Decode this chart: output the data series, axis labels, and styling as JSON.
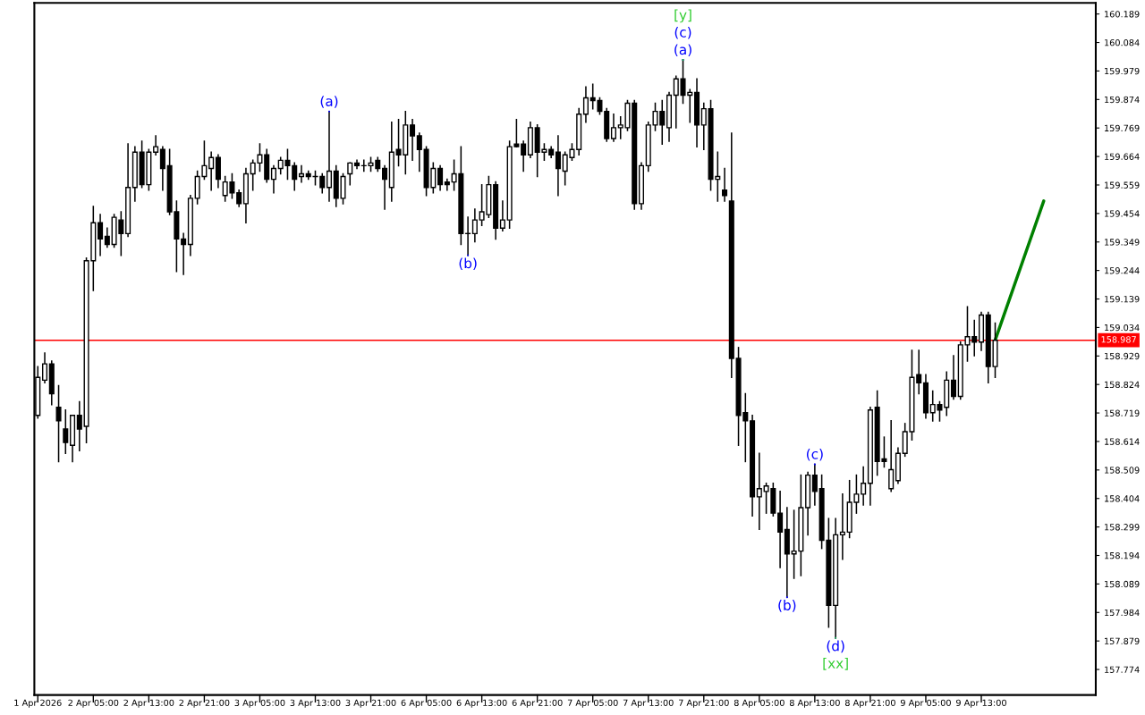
{
  "chart_data": {
    "type": "candlestick",
    "categories": [
      "1 Apr 2026",
      null,
      null,
      null,
      null,
      null,
      null,
      null,
      "2 Apr 05:00",
      null,
      null,
      null,
      null,
      null,
      null,
      null,
      "2 Apr 13:00",
      null,
      null,
      null,
      null,
      null,
      null,
      null,
      "2 Apr 21:00",
      null,
      null,
      null,
      null,
      null,
      null,
      null,
      "3 Apr 05:00",
      null,
      null,
      null,
      null,
      null,
      null,
      null,
      "3 Apr 13:00",
      null,
      null,
      null,
      null,
      null,
      null,
      null,
      "3 Apr 21:00",
      null,
      null,
      null,
      null,
      null,
      null,
      null,
      "6 Apr 05:00",
      null,
      null,
      null,
      null,
      null,
      null,
      null,
      "6 Apr 13:00",
      null,
      null,
      null,
      null,
      null,
      null,
      null,
      "6 Apr 21:00",
      null,
      null,
      null,
      null,
      null,
      null,
      null,
      "7 Apr 05:00",
      null,
      null,
      null,
      null,
      null,
      null,
      null,
      "7 Apr 13:00",
      null,
      null,
      null,
      null,
      null,
      null,
      null,
      "7 Apr 21:00",
      null,
      null,
      null,
      null,
      null,
      null,
      null,
      "8 Apr 05:00",
      null,
      null,
      null,
      null,
      null,
      null,
      null,
      "8 Apr 13:00",
      null,
      null,
      null,
      null,
      null,
      null,
      null,
      "8 Apr 21:00",
      null,
      null,
      null,
      null,
      null,
      null,
      null,
      "9 Apr 05:00",
      null,
      null,
      null,
      null,
      null,
      null,
      null,
      "9 Apr 13:00",
      null,
      null,
      null,
      null,
      null,
      null,
      null,
      null,
      null,
      null,
      null,
      null,
      null,
      null,
      null,
      null
    ],
    "ohlc": [
      [
        158.71,
        158.89,
        158.7,
        158.85
      ],
      [
        158.84,
        158.94,
        158.83,
        158.9
      ],
      [
        158.9,
        158.91,
        158.75,
        158.79
      ],
      [
        158.74,
        158.82,
        158.54,
        158.69
      ],
      [
        158.66,
        158.73,
        158.57,
        158.61
      ],
      [
        158.6,
        158.71,
        158.54,
        158.71
      ],
      [
        158.71,
        158.76,
        158.58,
        158.66
      ],
      [
        158.67,
        159.29,
        158.61,
        159.28
      ],
      [
        159.28,
        159.48,
        159.17,
        159.42
      ],
      [
        159.42,
        159.45,
        159.3,
        159.36
      ],
      [
        159.37,
        159.4,
        159.33,
        159.34
      ],
      [
        159.34,
        159.45,
        159.33,
        159.44
      ],
      [
        159.43,
        159.46,
        159.3,
        159.38
      ],
      [
        159.38,
        159.71,
        159.37,
        159.55
      ],
      [
        159.55,
        159.7,
        159.5,
        159.68
      ],
      [
        159.68,
        159.72,
        159.55,
        159.56
      ],
      [
        159.56,
        159.69,
        159.54,
        159.68
      ],
      [
        159.68,
        159.74,
        159.67,
        159.7
      ],
      [
        159.69,
        159.7,
        159.54,
        159.62
      ],
      [
        159.63,
        159.69,
        159.45,
        159.46
      ],
      [
        159.46,
        159.5,
        159.24,
        159.36
      ],
      [
        159.36,
        159.38,
        159.23,
        159.34
      ],
      [
        159.34,
        159.52,
        159.3,
        159.51
      ],
      [
        159.51,
        159.61,
        159.49,
        159.59
      ],
      [
        159.59,
        159.72,
        159.58,
        159.63
      ],
      [
        159.62,
        159.68,
        159.54,
        159.66
      ],
      [
        159.66,
        159.67,
        159.55,
        159.58
      ],
      [
        159.52,
        159.59,
        159.5,
        159.57
      ],
      [
        159.57,
        159.6,
        159.51,
        159.53
      ],
      [
        159.53,
        159.54,
        159.48,
        159.49
      ],
      [
        159.49,
        159.62,
        159.42,
        159.6
      ],
      [
        159.6,
        159.65,
        159.54,
        159.64
      ],
      [
        159.64,
        159.71,
        159.61,
        159.67
      ],
      [
        159.67,
        159.69,
        159.57,
        159.58
      ],
      [
        159.58,
        159.63,
        159.53,
        159.62
      ],
      [
        159.62,
        159.66,
        159.6,
        159.65
      ],
      [
        159.65,
        159.69,
        159.58,
        159.63
      ],
      [
        159.63,
        159.64,
        159.54,
        159.58
      ],
      [
        159.59,
        159.63,
        159.57,
        159.6
      ],
      [
        159.6,
        159.61,
        159.58,
        159.59
      ],
      [
        159.59,
        159.61,
        159.56,
        159.59
      ],
      [
        159.59,
        159.6,
        159.53,
        159.55
      ],
      [
        159.55,
        159.83,
        159.5,
        159.61
      ],
      [
        159.61,
        159.63,
        159.48,
        159.51
      ],
      [
        159.51,
        159.6,
        159.49,
        159.59
      ],
      [
        159.6,
        159.64,
        159.56,
        159.64
      ],
      [
        159.64,
        159.65,
        159.62,
        159.63
      ],
      [
        159.63,
        159.65,
        159.61,
        159.63
      ],
      [
        159.63,
        159.66,
        159.61,
        159.64
      ],
      [
        159.65,
        159.66,
        159.61,
        159.62
      ],
      [
        159.62,
        159.63,
        159.47,
        159.58
      ],
      [
        159.55,
        159.79,
        159.5,
        159.68
      ],
      [
        159.69,
        159.8,
        159.63,
        159.67
      ],
      [
        159.67,
        159.83,
        159.6,
        159.78
      ],
      [
        159.78,
        159.8,
        159.65,
        159.74
      ],
      [
        159.74,
        159.75,
        159.61,
        159.69
      ],
      [
        159.69,
        159.7,
        159.52,
        159.55
      ],
      [
        159.55,
        159.64,
        159.53,
        159.62
      ],
      [
        159.62,
        159.63,
        159.54,
        159.56
      ],
      [
        159.57,
        159.58,
        159.54,
        159.56
      ],
      [
        159.57,
        159.65,
        159.54,
        159.6
      ],
      [
        159.6,
        159.7,
        159.34,
        159.38
      ],
      [
        159.38,
        159.44,
        159.3,
        159.38
      ],
      [
        159.38,
        159.47,
        159.35,
        159.43
      ],
      [
        159.43,
        159.56,
        159.41,
        159.46
      ],
      [
        159.45,
        159.59,
        159.44,
        159.56
      ],
      [
        159.56,
        159.57,
        159.36,
        159.4
      ],
      [
        159.4,
        159.5,
        159.39,
        159.43
      ],
      [
        159.43,
        159.72,
        159.4,
        159.7
      ],
      [
        159.71,
        159.8,
        159.7,
        159.7
      ],
      [
        159.71,
        159.72,
        159.61,
        159.67
      ],
      [
        159.67,
        159.79,
        159.66,
        159.77
      ],
      [
        159.77,
        159.78,
        159.59,
        159.68
      ],
      [
        159.68,
        159.71,
        159.65,
        159.69
      ],
      [
        159.69,
        159.7,
        159.66,
        159.67
      ],
      [
        159.68,
        159.74,
        159.52,
        159.62
      ],
      [
        159.61,
        159.68,
        159.56,
        159.67
      ],
      [
        159.66,
        159.71,
        159.65,
        159.69
      ],
      [
        159.69,
        159.84,
        159.67,
        159.82
      ],
      [
        159.82,
        159.92,
        159.79,
        159.88
      ],
      [
        159.88,
        159.93,
        159.84,
        159.87
      ],
      [
        159.87,
        159.88,
        159.82,
        159.83
      ],
      [
        159.83,
        159.84,
        159.72,
        159.73
      ],
      [
        159.73,
        159.82,
        159.72,
        159.77
      ],
      [
        159.77,
        159.81,
        159.73,
        159.78
      ],
      [
        159.77,
        159.87,
        159.76,
        159.86
      ],
      [
        159.86,
        159.87,
        159.47,
        159.49
      ],
      [
        159.49,
        159.64,
        159.47,
        159.63
      ],
      [
        159.63,
        159.79,
        159.61,
        159.78
      ],
      [
        159.78,
        159.86,
        159.76,
        159.83
      ],
      [
        159.83,
        159.87,
        159.71,
        159.78
      ],
      [
        159.77,
        159.9,
        159.72,
        159.89
      ],
      [
        159.89,
        159.96,
        159.77,
        159.95
      ],
      [
        159.95,
        160.02,
        159.86,
        159.89
      ],
      [
        159.89,
        159.91,
        159.79,
        159.9
      ],
      [
        159.9,
        159.95,
        159.7,
        159.78
      ],
      [
        159.78,
        159.86,
        159.69,
        159.84
      ],
      [
        159.84,
        159.87,
        159.54,
        159.58
      ],
      [
        159.58,
        159.68,
        159.5,
        159.59
      ],
      [
        159.54,
        159.62,
        159.5,
        159.52
      ],
      [
        159.5,
        159.75,
        158.85,
        158.92
      ],
      [
        158.92,
        158.96,
        158.6,
        158.71
      ],
      [
        158.72,
        158.79,
        158.54,
        158.69
      ],
      [
        158.69,
        158.71,
        158.34,
        158.41
      ],
      [
        158.41,
        158.57,
        158.29,
        158.44
      ],
      [
        158.43,
        158.46,
        158.35,
        158.45
      ],
      [
        158.44,
        158.46,
        158.34,
        158.35
      ],
      [
        158.35,
        158.43,
        158.15,
        158.28
      ],
      [
        158.29,
        158.37,
        158.04,
        158.2
      ],
      [
        158.2,
        158.36,
        158.11,
        158.21
      ],
      [
        158.21,
        158.49,
        158.12,
        158.37
      ],
      [
        158.37,
        158.5,
        158.27,
        158.49
      ],
      [
        158.49,
        158.53,
        158.38,
        158.43
      ],
      [
        158.44,
        158.49,
        158.22,
        158.25
      ],
      [
        158.25,
        158.33,
        157.93,
        158.01
      ],
      [
        158.01,
        158.33,
        157.89,
        158.27
      ],
      [
        158.27,
        158.42,
        158.18,
        158.28
      ],
      [
        158.28,
        158.47,
        158.26,
        158.39
      ],
      [
        158.39,
        158.49,
        158.35,
        158.42
      ],
      [
        158.42,
        158.52,
        158.38,
        158.46
      ],
      [
        158.46,
        158.74,
        158.38,
        158.73
      ],
      [
        158.74,
        158.8,
        158.49,
        158.54
      ],
      [
        158.55,
        158.63,
        158.52,
        158.54
      ],
      [
        158.44,
        158.69,
        158.43,
        158.51
      ],
      [
        158.47,
        158.59,
        158.46,
        158.57
      ],
      [
        158.57,
        158.68,
        158.56,
        158.65
      ],
      [
        158.65,
        158.95,
        158.62,
        158.85
      ],
      [
        158.86,
        158.95,
        158.79,
        158.83
      ],
      [
        158.83,
        158.86,
        158.7,
        158.72
      ],
      [
        158.72,
        158.8,
        158.69,
        158.75
      ],
      [
        158.75,
        158.76,
        158.69,
        158.73
      ],
      [
        158.74,
        158.87,
        158.71,
        158.84
      ],
      [
        158.84,
        158.93,
        158.77,
        158.78
      ],
      [
        158.78,
        158.98,
        158.77,
        158.97
      ],
      [
        158.97,
        159.11,
        158.91,
        159.0
      ],
      [
        159.0,
        159.06,
        158.93,
        158.98
      ],
      [
        158.98,
        159.09,
        158.95,
        159.08
      ],
      [
        159.08,
        159.09,
        158.83,
        158.89
      ],
      [
        158.89,
        159.05,
        158.85,
        158.987
      ],
      null,
      null,
      null,
      null,
      null,
      null,
      null,
      null,
      null,
      null,
      null,
      null,
      null,
      null
    ],
    "series": [
      {
        "type": "line",
        "color": "#008000",
        "values": [
          null,
          null,
          null,
          null,
          null,
          null,
          null,
          null,
          null,
          null,
          null,
          null,
          null,
          null,
          null,
          null,
          null,
          null,
          null,
          null,
          null,
          null,
          null,
          null,
          null,
          null,
          null,
          null,
          null,
          null,
          null,
          null,
          null,
          null,
          null,
          null,
          null,
          null,
          null,
          null,
          null,
          null,
          null,
          null,
          null,
          null,
          null,
          null,
          null,
          null,
          null,
          null,
          null,
          null,
          null,
          null,
          null,
          null,
          null,
          null,
          null,
          null,
          null,
          null,
          null,
          null,
          null,
          null,
          null,
          null,
          null,
          null,
          null,
          null,
          null,
          null,
          null,
          null,
          null,
          null,
          null,
          null,
          null,
          null,
          null,
          null,
          null,
          null,
          null,
          null,
          null,
          null,
          null,
          null,
          null,
          null,
          null,
          null,
          null,
          null,
          null,
          null,
          null,
          null,
          null,
          null,
          null,
          null,
          null,
          null,
          null,
          null,
          null,
          null,
          null,
          null,
          null,
          null,
          null,
          null,
          null,
          null,
          null,
          null,
          null,
          null,
          null,
          null,
          null,
          null,
          null,
          null,
          null,
          null,
          null,
          null,
          null,
          null,
          158.987,
          null,
          null,
          null,
          null,
          null,
          null,
          159.5,
          null,
          null,
          null,
          null,
          null,
          null,
          null
        ]
      },
      {
        "type": "scatter",
        "marker": "none",
        "color": "#0000ff",
        "values": [
          null,
          null,
          null,
          null,
          null,
          null,
          null,
          null,
          null,
          null,
          null,
          null,
          null,
          null,
          null,
          null,
          null,
          null,
          null,
          null,
          null,
          null,
          null,
          null,
          null,
          null,
          null,
          null,
          null,
          null,
          null,
          null,
          null,
          null,
          null,
          null,
          null,
          null,
          null,
          null,
          null,
          null,
          159.83,
          null,
          null,
          null,
          null,
          null,
          null,
          null,
          null,
          null,
          null,
          null,
          null,
          null,
          null,
          null,
          null,
          null,
          null,
          null,
          159.3,
          null,
          null,
          null,
          null,
          null,
          null,
          null,
          null,
          null,
          null,
          null,
          null,
          null,
          null,
          null,
          null,
          null,
          null,
          null,
          null,
          null,
          null,
          null,
          null,
          null,
          null,
          null,
          null,
          null,
          null,
          160.02,
          null,
          null,
          null,
          null,
          null,
          null,
          null,
          null,
          null,
          null,
          null,
          null,
          null,
          null,
          158.04,
          null,
          null,
          null,
          158.53,
          null,
          null,
          157.89,
          null,
          null,
          null,
          null,
          null,
          null,
          null,
          null,
          null,
          null,
          null,
          null,
          null,
          null,
          null,
          null,
          null,
          null,
          null,
          null,
          null,
          null,
          null,
          null,
          null,
          null,
          null,
          null,
          null,
          null,
          null,
          null,
          null,
          null,
          null,
          null,
          null
        ],
        "value_labels": [
          null,
          null,
          null,
          null,
          null,
          null,
          null,
          null,
          null,
          null,
          null,
          null,
          null,
          null,
          null,
          null,
          null,
          null,
          null,
          null,
          null,
          null,
          null,
          null,
          null,
          null,
          null,
          null,
          null,
          null,
          null,
          null,
          null,
          null,
          null,
          null,
          null,
          null,
          null,
          null,
          null,
          null,
          "(a)",
          null,
          null,
          null,
          null,
          null,
          null,
          null,
          null,
          null,
          null,
          null,
          null,
          null,
          null,
          null,
          null,
          null,
          null,
          null,
          "(b)",
          null,
          null,
          null,
          null,
          null,
          null,
          null,
          null,
          null,
          null,
          null,
          null,
          null,
          null,
          null,
          null,
          null,
          null,
          null,
          null,
          null,
          null,
          null,
          null,
          null,
          null,
          null,
          null,
          null,
          null,
          "(a)",
          null,
          null,
          null,
          null,
          null,
          null,
          null,
          null,
          null,
          null,
          null,
          null,
          null,
          null,
          "(b)",
          null,
          null,
          null,
          "(c)",
          null,
          null,
          "(d)",
          null,
          null,
          null,
          null,
          null,
          null,
          null,
          null,
          null,
          null,
          null,
          null,
          null,
          null,
          null,
          null,
          null,
          null,
          null,
          null,
          null,
          null,
          null,
          null,
          null,
          null,
          null,
          null,
          null,
          null,
          null,
          null,
          null,
          null,
          null,
          null,
          null
        ]
      },
      {
        "type": "scatter",
        "marker": "none",
        "color": "#0000ff",
        "values": [
          null,
          null,
          null,
          null,
          null,
          null,
          null,
          null,
          null,
          null,
          null,
          null,
          null,
          null,
          null,
          null,
          null,
          null,
          null,
          null,
          null,
          null,
          null,
          null,
          null,
          null,
          null,
          null,
          null,
          null,
          null,
          null,
          null,
          null,
          null,
          null,
          null,
          null,
          null,
          null,
          null,
          null,
          null,
          null,
          null,
          null,
          null,
          null,
          null,
          null,
          null,
          null,
          null,
          null,
          null,
          null,
          null,
          null,
          null,
          null,
          null,
          null,
          null,
          null,
          null,
          null,
          null,
          null,
          null,
          null,
          null,
          null,
          null,
          null,
          null,
          null,
          null,
          null,
          null,
          null,
          null,
          null,
          null,
          null,
          null,
          null,
          null,
          null,
          null,
          null,
          null,
          null,
          null,
          160.02,
          null,
          null,
          null,
          null,
          null,
          null,
          null,
          null,
          null,
          null,
          null,
          null,
          null,
          null,
          null,
          null,
          null,
          null,
          null,
          null,
          null,
          null,
          null,
          null,
          null,
          null,
          null,
          null,
          null,
          null,
          null,
          null,
          null,
          null,
          null,
          null,
          null,
          null,
          null,
          null,
          null,
          null,
          null,
          null,
          null,
          null,
          null,
          null,
          null,
          null,
          null,
          null,
          null,
          null,
          null,
          null,
          null,
          null,
          null
        ],
        "value_labels": [
          null,
          null,
          null,
          null,
          null,
          null,
          null,
          null,
          null,
          null,
          null,
          null,
          null,
          null,
          null,
          null,
          null,
          null,
          null,
          null,
          null,
          null,
          null,
          null,
          null,
          null,
          null,
          null,
          null,
          null,
          null,
          null,
          null,
          null,
          null,
          null,
          null,
          null,
          null,
          null,
          null,
          null,
          null,
          null,
          null,
          null,
          null,
          null,
          null,
          null,
          null,
          null,
          null,
          null,
          null,
          null,
          null,
          null,
          null,
          null,
          null,
          null,
          null,
          null,
          null,
          null,
          null,
          null,
          null,
          null,
          null,
          null,
          null,
          null,
          null,
          null,
          null,
          null,
          null,
          null,
          null,
          null,
          null,
          null,
          null,
          null,
          null,
          null,
          null,
          null,
          null,
          null,
          null,
          "(c)",
          null,
          null,
          null,
          null,
          null,
          null,
          null,
          null,
          null,
          null,
          null,
          null,
          null,
          null,
          null,
          null,
          null,
          null,
          null,
          null,
          null,
          null,
          null,
          null,
          null,
          null,
          null,
          null,
          null,
          null,
          null,
          null,
          null,
          null,
          null,
          null,
          null,
          null,
          null,
          null,
          null,
          null,
          null,
          null,
          null,
          null,
          null,
          null,
          null,
          null,
          null,
          null,
          null,
          null,
          null,
          null,
          null,
          null,
          null
        ]
      },
      {
        "type": "scatter",
        "marker": "none",
        "color": "#32cd32",
        "values": [
          null,
          null,
          null,
          null,
          null,
          null,
          null,
          null,
          null,
          null,
          null,
          null,
          null,
          null,
          null,
          null,
          null,
          null,
          null,
          null,
          null,
          null,
          null,
          null,
          null,
          null,
          null,
          null,
          null,
          null,
          null,
          null,
          null,
          null,
          null,
          null,
          null,
          null,
          null,
          null,
          null,
          null,
          null,
          null,
          null,
          null,
          null,
          null,
          null,
          null,
          null,
          null,
          null,
          null,
          null,
          null,
          null,
          null,
          null,
          null,
          null,
          null,
          null,
          null,
          null,
          null,
          null,
          null,
          null,
          null,
          null,
          null,
          null,
          null,
          null,
          null,
          null,
          null,
          null,
          null,
          null,
          null,
          null,
          null,
          null,
          null,
          null,
          null,
          null,
          null,
          null,
          null,
          null,
          160.02,
          null,
          null,
          null,
          null,
          null,
          null,
          null,
          null,
          null,
          null,
          null,
          null,
          null,
          null,
          null,
          null,
          null,
          null,
          null,
          null,
          null,
          157.89,
          null,
          null,
          null,
          null,
          null,
          null,
          null,
          null,
          null,
          null,
          null,
          null,
          null,
          null,
          null,
          null,
          null,
          null,
          null,
          null,
          null,
          null,
          null,
          null,
          null,
          null,
          null,
          null,
          null,
          null,
          null,
          null,
          null,
          null,
          null,
          null,
          null
        ],
        "value_labels": [
          null,
          null,
          null,
          null,
          null,
          null,
          null,
          null,
          null,
          null,
          null,
          null,
          null,
          null,
          null,
          null,
          null,
          null,
          null,
          null,
          null,
          null,
          null,
          null,
          null,
          null,
          null,
          null,
          null,
          null,
          null,
          null,
          null,
          null,
          null,
          null,
          null,
          null,
          null,
          null,
          null,
          null,
          null,
          null,
          null,
          null,
          null,
          null,
          null,
          null,
          null,
          null,
          null,
          null,
          null,
          null,
          null,
          null,
          null,
          null,
          null,
          null,
          null,
          null,
          null,
          null,
          null,
          null,
          null,
          null,
          null,
          null,
          null,
          null,
          null,
          null,
          null,
          null,
          null,
          null,
          null,
          null,
          null,
          null,
          null,
          null,
          null,
          null,
          null,
          null,
          null,
          null,
          null,
          "[y]",
          null,
          null,
          null,
          null,
          null,
          null,
          null,
          null,
          null,
          null,
          null,
          null,
          null,
          null,
          null,
          null,
          null,
          null,
          null,
          null,
          null,
          "[xx]",
          null,
          null,
          null,
          null,
          null,
          null,
          null,
          null,
          null,
          null,
          null,
          null,
          null,
          null,
          null,
          null,
          null,
          null,
          null,
          null,
          null,
          null,
          null,
          null,
          null,
          null,
          null,
          null,
          null,
          null,
          null,
          null,
          null,
          null,
          null,
          null,
          null
        ]
      }
    ],
    "ylim": [
      157.68,
      160.23
    ],
    "yticks": [
      160.189,
      160.084,
      159.979,
      159.874,
      159.769,
      159.664,
      159.559,
      159.454,
      159.349,
      159.244,
      159.139,
      159.034,
      158.929,
      158.824,
      158.719,
      158.614,
      158.509,
      158.404,
      158.299,
      158.194,
      158.089,
      157.984,
      157.879,
      157.774
    ],
    "ref_lines": [
      {
        "axis": "y",
        "value": 158.987,
        "label": "158.987",
        "color": "#ff0000"
      }
    ],
    "grid": false
  }
}
